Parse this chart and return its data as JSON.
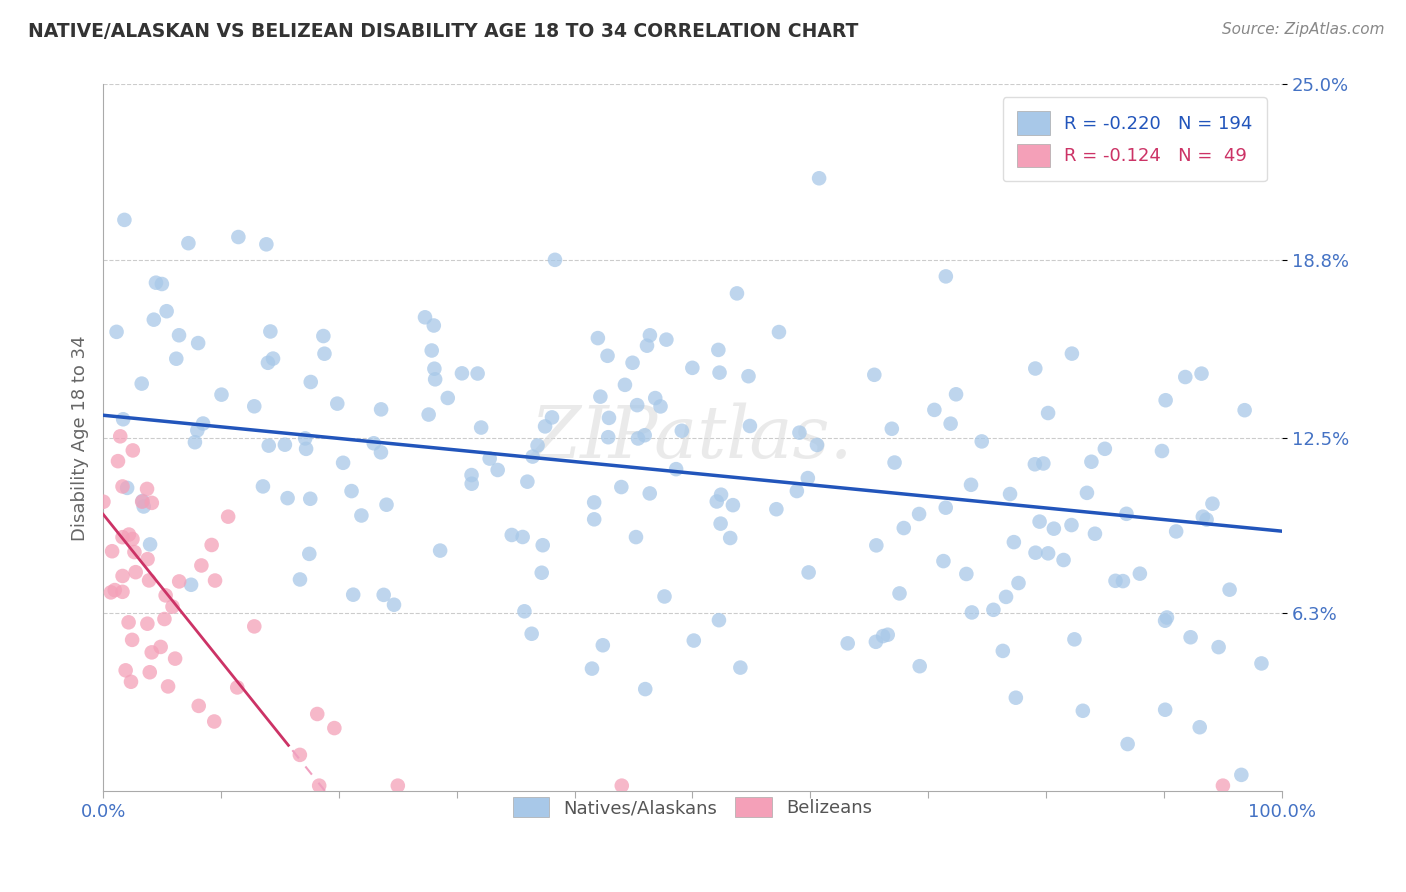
{
  "title": "NATIVE/ALASKAN VS BELIZEAN DISABILITY AGE 18 TO 34 CORRELATION CHART",
  "source_text": "Source: ZipAtlas.com",
  "ylabel": "Disability Age 18 to 34",
  "xlim": [
    0.0,
    1.0
  ],
  "ylim": [
    0.0,
    0.25
  ],
  "yticks": [
    0.063,
    0.125,
    0.188,
    0.25
  ],
  "ytick_labels": [
    "6.3%",
    "12.5%",
    "18.8%",
    "25.0%"
  ],
  "native_R": -0.22,
  "native_N": 194,
  "belizean_R": -0.124,
  "belizean_N": 49,
  "native_color": "#a8c8e8",
  "belizean_color": "#f4a0b8",
  "native_line_color": "#2255bb",
  "belizean_line_solid_color": "#cc3366",
  "belizean_line_dashed_color": "#f0a0c0",
  "background_color": "#ffffff",
  "grid_color": "#cccccc",
  "watermark": "ZIPatlas.",
  "title_color": "#333333",
  "axis_label_color": "#4472c4",
  "native_line_y0": 0.133,
  "native_line_y1": 0.092,
  "belizean_line_y0": 0.098,
  "belizean_line_x_solid_end": 0.16,
  "belizean_line_slope": -0.52
}
